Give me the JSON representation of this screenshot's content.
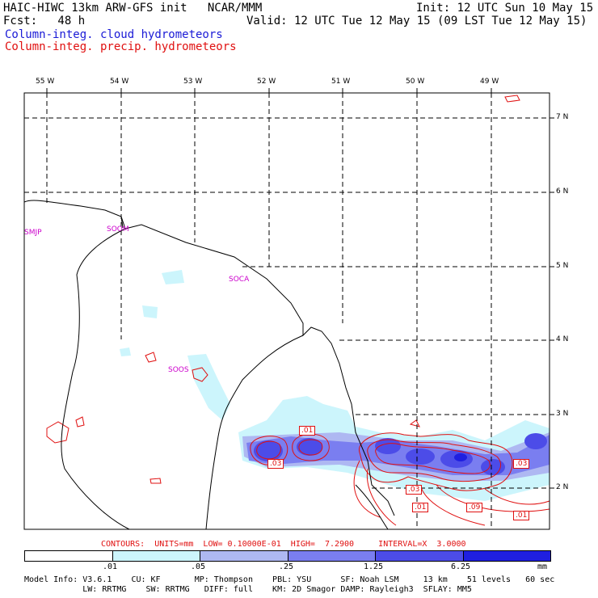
{
  "header": {
    "title_left": "HAIC-HIWC 13km ARW-GFS init   NCAR/MMM",
    "fcst_label": "Fcst:   48 h",
    "init": "Init: 12 UTC Sun 10 May 15",
    "valid": "Valid: 12 UTC Tue 12 May 15 (09 LST Tue 12 May 15)",
    "legend_cloud": "Column-integ. cloud hydrometeors",
    "legend_precip": "Column-integ. precip. hydrometeors",
    "legend_cloud_color": "#1a1ad6",
    "legend_precip_color": "#e01010"
  },
  "map": {
    "lon_labels": [
      "55 W",
      "54 W",
      "53 W",
      "52 W",
      "51 W",
      "50 W",
      "49 W"
    ],
    "lat_labels": [
      "7 N",
      "6 N",
      "5 N",
      "4 N",
      "3 N",
      "2 N"
    ],
    "stations": [
      {
        "id": "SMJP"
      },
      {
        "id": "SOOM"
      },
      {
        "id": "SOCA"
      },
      {
        "id": "SOOS"
      }
    ],
    "station_color": "#cc00cc",
    "contour_labels": [
      ".01",
      ".03",
      ".03",
      ".03",
      ".01",
      ".01",
      ".09",
      ".01"
    ]
  },
  "footer": {
    "contours_line": "CONTOURS:  UNITS=mm  LOW= 0.10000E-01  HIGH=  7.2900     INTERVAL=X  3.0000",
    "colorbar_ticks": [
      ".01",
      ".05",
      ".25",
      "1.25",
      "6.25"
    ],
    "colorbar_unit": "mm",
    "colorbar_colors": [
      "#ffffff",
      "#ccf5fc",
      "#aeb8f2",
      "#7a7ef0",
      "#4c4ce8",
      "#1f1fe0"
    ],
    "model_line1": "Model Info: V3.6.1    CU: KF       MP: Thompson    PBL: YSU      SF: Noah LSM     13 km    51 levels   60 sec",
    "model_line2": "            LW: RRTMG    SW: RRTMG   DIFF: full    KM: 2D Smagor DAMP: Rayleigh3  SFLAY: MM5"
  }
}
